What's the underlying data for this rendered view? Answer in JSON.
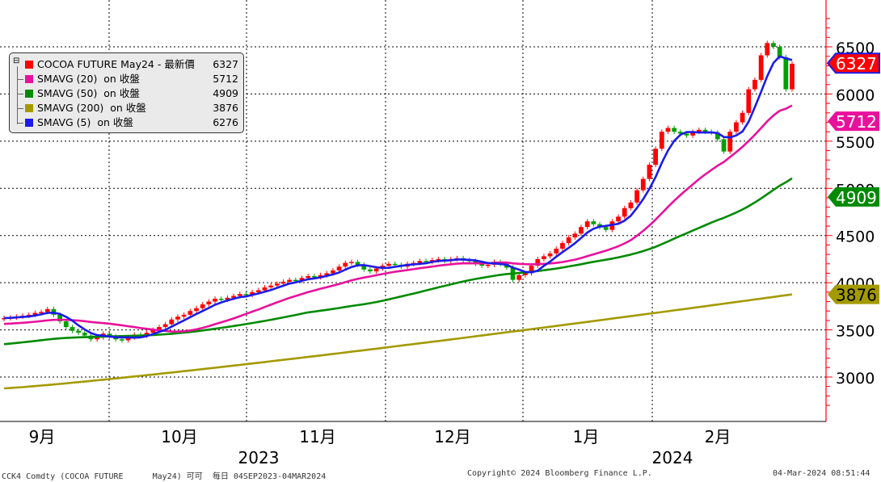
{
  "chart_data": {
    "type": "candlestick",
    "y_ticks": [
      3000,
      3500,
      4000,
      4500,
      5000,
      5500,
      6000,
      6500
    ],
    "ylim": [
      2600,
      6850
    ],
    "x_month_labels": [
      "9月",
      "10月",
      "11月",
      "12月",
      "1月",
      "2月"
    ],
    "x_year_labels": [
      "2023",
      "2024"
    ],
    "legend": [
      {
        "name": "COCOA FUTURE May24 - 最新價",
        "value": "6327",
        "color": "#ff0000"
      },
      {
        "name": "SMAVG (20)  on 收盤",
        "value": "5712",
        "color": "#e8119c"
      },
      {
        "name": "SMAVG (50)  on 收盤",
        "value": "4909",
        "color": "#008a00"
      },
      {
        "name": "SMAVG (200)  on 收盤",
        "value": "3876",
        "color": "#a39a00"
      },
      {
        "name": "SMAVG (5)  on 收盤",
        "value": "6276",
        "color": "#1b1bea"
      }
    ],
    "value_tags": [
      {
        "value": "6327",
        "level": 6327,
        "color": "#ff0000",
        "text_color": "#ffffff"
      },
      {
        "value": "5712",
        "level": 5712,
        "color": "#e8119c",
        "text_color": "#ffffff"
      },
      {
        "value": "4909",
        "level": 4909,
        "color": "#008a00",
        "text_color": "#ffffff"
      },
      {
        "value": "3876",
        "level": 3876,
        "color": "#a39a00",
        "text_color": "#000000"
      }
    ],
    "closes": [
      3625,
      3630,
      3640,
      3650,
      3660,
      3680,
      3690,
      3720,
      3660,
      3590,
      3530,
      3490,
      3470,
      3440,
      3400,
      3420,
      3460,
      3430,
      3400,
      3390,
      3420,
      3450,
      3440,
      3470,
      3500,
      3530,
      3560,
      3610,
      3640,
      3660,
      3700,
      3730,
      3770,
      3800,
      3830,
      3820,
      3840,
      3860,
      3880,
      3870,
      3900,
      3920,
      3950,
      3970,
      3990,
      4010,
      4030,
      4020,
      4050,
      4070,
      4060,
      4080,
      4100,
      4130,
      4170,
      4210,
      4220,
      4190,
      4140,
      4120,
      4150,
      4180,
      4200,
      4190,
      4170,
      4200,
      4210,
      4230,
      4220,
      4240,
      4250,
      4230,
      4250,
      4260,
      4240,
      4230,
      4200,
      4180,
      4190,
      4220,
      4200,
      4160,
      4030,
      4080,
      4100,
      4180,
      4250,
      4280,
      4310,
      4360,
      4420,
      4480,
      4520,
      4590,
      4650,
      4620,
      4590,
      4560,
      4650,
      4700,
      4790,
      4850,
      4980,
      5100,
      5250,
      5420,
      5600,
      5640,
      5600,
      5580,
      5560,
      5600,
      5620,
      5600,
      5590,
      5520,
      5390,
      5600,
      5700,
      5800,
      6050,
      6150,
      6410,
      6540,
      6500,
      6390,
      6050,
      6320
    ]
  },
  "footer": {
    "left": "CCK4 Comdty (COCOA FUTURE      May24) 可可  每日 04SEP2023-04MAR2024",
    "center": "Copyright© 2024 Bloomberg Finance L.P.",
    "right": "04-Mar-2024 08:51:44"
  }
}
